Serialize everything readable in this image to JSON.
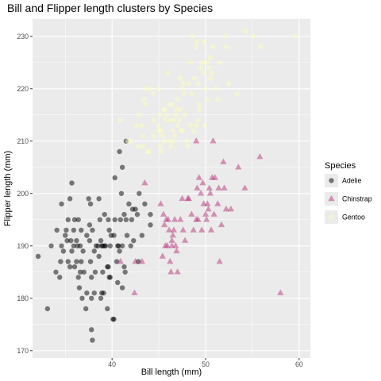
{
  "chart_data": {
    "type": "scatter",
    "title": "Bill and Flipper length clusters by Species",
    "xlabel": "Bill length (mm)",
    "ylabel": "Flipper length (mm)",
    "xlim": [
      31.5,
      61.2
    ],
    "ylim": [
      168.6,
      233.3
    ],
    "x_ticks": [
      40,
      50,
      60
    ],
    "y_ticks": [
      170,
      180,
      190,
      200,
      210,
      220,
      230
    ],
    "grid": true,
    "legend": {
      "title": "Species",
      "position": "right"
    },
    "colors": {
      "panel": "#ebebeb",
      "grid": "#ffffff"
    },
    "series": [
      {
        "name": "Adelie",
        "color": "#000004",
        "shape": "circle",
        "points": [
          [
            32.1,
            188
          ],
          [
            33.1,
            178
          ],
          [
            33.5,
            190
          ],
          [
            34.0,
            185
          ],
          [
            34.1,
            193
          ],
          [
            34.4,
            184
          ],
          [
            34.5,
            187
          ],
          [
            34.6,
            190
          ],
          [
            34.6,
            198
          ],
          [
            34.8,
            189
          ],
          [
            35.0,
            192
          ],
          [
            35.1,
            193
          ],
          [
            35.2,
            191
          ],
          [
            35.3,
            187
          ],
          [
            35.3,
            195
          ],
          [
            35.5,
            186
          ],
          [
            35.5,
            199
          ],
          [
            35.6,
            191
          ],
          [
            35.7,
            189
          ],
          [
            35.7,
            202
          ],
          [
            35.9,
            190
          ],
          [
            35.9,
            193
          ],
          [
            36.0,
            186
          ],
          [
            36.0,
            195
          ],
          [
            36.2,
            187
          ],
          [
            36.2,
            191
          ],
          [
            36.3,
            190
          ],
          [
            36.4,
            184
          ],
          [
            36.4,
            195
          ],
          [
            36.5,
            182
          ],
          [
            36.6,
            185
          ],
          [
            36.6,
            190
          ],
          [
            36.7,
            187
          ],
          [
            36.7,
            193
          ],
          [
            36.8,
            180
          ],
          [
            36.9,
            189
          ],
          [
            37.0,
            185
          ],
          [
            37.2,
            178
          ],
          [
            37.3,
            181
          ],
          [
            37.3,
            192
          ],
          [
            37.5,
            199
          ],
          [
            37.6,
            191
          ],
          [
            37.6,
            194
          ],
          [
            37.7,
            187
          ],
          [
            37.7,
            198
          ],
          [
            37.8,
            174
          ],
          [
            37.8,
            180
          ],
          [
            37.8,
            184
          ],
          [
            37.9,
            172
          ],
          [
            37.9,
            193
          ],
          [
            38.1,
            181
          ],
          [
            38.1,
            189
          ],
          [
            38.2,
            185
          ],
          [
            38.3,
            190
          ],
          [
            38.5,
            190
          ],
          [
            38.6,
            188
          ],
          [
            38.6,
            199
          ],
          [
            38.7,
            195
          ],
          [
            38.8,
            180
          ],
          [
            38.8,
            191
          ],
          [
            38.9,
            181
          ],
          [
            38.9,
            190
          ],
          [
            39.0,
            185
          ],
          [
            39.0,
            190
          ],
          [
            39.1,
            181
          ],
          [
            39.2,
            190
          ],
          [
            39.2,
            196
          ],
          [
            39.3,
            190
          ],
          [
            39.5,
            178
          ],
          [
            39.5,
            186
          ],
          [
            39.6,
            186
          ],
          [
            39.6,
            195
          ],
          [
            39.7,
            184
          ],
          [
            39.7,
            193
          ],
          [
            39.8,
            184
          ],
          [
            39.8,
            190
          ],
          [
            40.1,
            176
          ],
          [
            40.2,
            176
          ],
          [
            40.2,
            192
          ],
          [
            40.3,
            195
          ],
          [
            40.5,
            187
          ],
          [
            40.6,
            183
          ],
          [
            40.6,
            190
          ],
          [
            40.7,
            190
          ],
          [
            40.8,
            189
          ],
          [
            40.9,
            195
          ],
          [
            41.1,
            182
          ],
          [
            41.1,
            190
          ],
          [
            41.3,
            186
          ],
          [
            41.3,
            196
          ],
          [
            41.4,
            185
          ],
          [
            41.5,
            195
          ],
          [
            41.6,
            192
          ],
          [
            41.8,
            198
          ],
          [
            42.0,
            190
          ],
          [
            42.1,
            195
          ],
          [
            42.2,
            197
          ],
          [
            42.3,
            191
          ],
          [
            42.5,
            197
          ],
          [
            42.7,
            196
          ],
          [
            42.8,
            187
          ],
          [
            42.9,
            200
          ],
          [
            43.2,
            192
          ],
          [
            43.5,
            198
          ],
          [
            44.1,
            196
          ],
          [
            44.1,
            194
          ],
          [
            41.1,
            205
          ],
          [
            41.5,
            210
          ],
          [
            40.8,
            208
          ],
          [
            40.3,
            203
          ],
          [
            41.0,
            200
          ],
          [
            39.9,
            192
          ]
        ]
      },
      {
        "name": "Chinstrap",
        "color": "#b63679",
        "shape": "triangle",
        "points": [
          [
            40.9,
            187
          ],
          [
            42.4,
            181
          ],
          [
            42.5,
            187
          ],
          [
            43.2,
            187
          ],
          [
            45.2,
            198
          ],
          [
            45.4,
            188
          ],
          [
            45.5,
            196
          ],
          [
            45.6,
            194
          ],
          [
            45.7,
            190
          ],
          [
            45.9,
            190
          ],
          [
            46.0,
            195
          ],
          [
            46.1,
            193
          ],
          [
            46.2,
            187
          ],
          [
            46.4,
            190
          ],
          [
            46.4,
            191
          ],
          [
            46.5,
            192
          ],
          [
            46.6,
            193
          ],
          [
            46.7,
            195
          ],
          [
            46.8,
            190
          ],
          [
            46.9,
            189
          ],
          [
            47.0,
            185
          ],
          [
            47.3,
            195
          ],
          [
            47.5,
            199
          ],
          [
            47.6,
            193
          ],
          [
            47.8,
            191
          ],
          [
            48.1,
            199
          ],
          [
            48.2,
            199
          ],
          [
            48.7,
            193
          ],
          [
            49.0,
            195
          ],
          [
            49.0,
            210
          ],
          [
            49.2,
            195
          ],
          [
            49.3,
            203
          ],
          [
            49.5,
            200
          ],
          [
            49.6,
            193
          ],
          [
            49.7,
            202
          ],
          [
            49.8,
            198
          ],
          [
            50.0,
            196
          ],
          [
            50.1,
            195
          ],
          [
            50.2,
            198
          ],
          [
            50.3,
            197
          ],
          [
            50.4,
            201
          ],
          [
            50.5,
            200
          ],
          [
            50.6,
            193
          ],
          [
            50.7,
            203
          ],
          [
            50.8,
            210
          ],
          [
            50.9,
            196
          ],
          [
            51.0,
            203
          ],
          [
            51.3,
            198
          ],
          [
            51.4,
            201
          ],
          [
            51.5,
            187
          ],
          [
            51.7,
            194
          ],
          [
            51.9,
            206
          ],
          [
            52.0,
            201
          ],
          [
            52.2,
            197
          ],
          [
            52.7,
            197
          ],
          [
            53.5,
            205
          ],
          [
            54.2,
            201
          ],
          [
            55.8,
            207
          ],
          [
            58.0,
            181
          ],
          [
            46.3,
            185
          ],
          [
            43.5,
            202
          ],
          [
            45.8,
            195
          ],
          [
            48.5,
            196
          ],
          [
            49.1,
            201
          ]
        ]
      },
      {
        "name": "Gentoo",
        "color": "#fcfdbf",
        "shape": "circle",
        "points": [
          [
            40.9,
            214
          ],
          [
            41.7,
            210
          ],
          [
            42.0,
            210
          ],
          [
            42.6,
            213
          ],
          [
            42.8,
            209
          ],
          [
            42.9,
            215
          ],
          [
            43.2,
            213
          ],
          [
            43.3,
            209
          ],
          [
            43.4,
            218
          ],
          [
            43.5,
            220
          ],
          [
            43.6,
            217
          ],
          [
            43.8,
            208
          ],
          [
            44.0,
            208
          ],
          [
            44.4,
            219
          ],
          [
            44.5,
            214
          ],
          [
            44.9,
            213
          ],
          [
            45.0,
            220
          ],
          [
            45.1,
            215
          ],
          [
            45.2,
            212
          ],
          [
            45.3,
            208
          ],
          [
            45.4,
            211
          ],
          [
            45.5,
            216
          ],
          [
            45.6,
            210
          ],
          [
            45.7,
            214
          ],
          [
            45.8,
            215
          ],
          [
            46.1,
            217
          ],
          [
            46.2,
            214
          ],
          [
            46.3,
            209
          ],
          [
            46.4,
            217
          ],
          [
            46.5,
            210
          ],
          [
            46.6,
            214
          ],
          [
            46.7,
            211
          ],
          [
            46.8,
            215
          ],
          [
            46.9,
            216
          ],
          [
            47.0,
            213
          ],
          [
            47.2,
            214
          ],
          [
            47.3,
            216
          ],
          [
            47.4,
            212
          ],
          [
            47.5,
            220
          ],
          [
            47.6,
            221
          ],
          [
            47.7,
            219
          ],
          [
            47.8,
            215
          ],
          [
            48.1,
            209
          ],
          [
            48.2,
            221
          ],
          [
            48.4,
            213
          ],
          [
            48.5,
            219
          ],
          [
            48.6,
            230
          ],
          [
            48.7,
            212
          ],
          [
            48.8,
            222
          ],
          [
            49.0,
            228
          ],
          [
            49.1,
            229
          ],
          [
            49.2,
            221
          ],
          [
            49.3,
            217
          ],
          [
            49.4,
            216
          ],
          [
            49.5,
            224
          ],
          [
            49.6,
            225
          ],
          [
            49.8,
            229
          ],
          [
            49.9,
            213
          ],
          [
            50.0,
            220
          ],
          [
            50.1,
            225
          ],
          [
            50.2,
            218
          ],
          [
            50.4,
            224
          ],
          [
            50.5,
            222
          ],
          [
            50.7,
            223
          ],
          [
            50.8,
            228
          ],
          [
            51.1,
            220
          ],
          [
            51.3,
            218
          ],
          [
            51.5,
            225
          ],
          [
            52.1,
            230
          ],
          [
            52.2,
            228
          ],
          [
            52.5,
            221
          ],
          [
            53.4,
            219
          ],
          [
            54.3,
            231
          ],
          [
            55.1,
            230
          ],
          [
            55.9,
            228
          ],
          [
            59.6,
            230
          ],
          [
            44.0,
            220
          ],
          [
            45.0,
            212
          ],
          [
            46.0,
            223
          ],
          [
            47.0,
            218
          ],
          [
            48.0,
            210
          ],
          [
            49.0,
            213
          ],
          [
            46.5,
            212
          ],
          [
            45.7,
            216
          ],
          [
            44.5,
            211
          ],
          [
            47.3,
            222
          ],
          [
            49.2,
            214
          ],
          [
            50.5,
            226
          ],
          [
            48.4,
            225
          ],
          [
            46.2,
            210
          ],
          [
            45.1,
            209
          ],
          [
            43.3,
            211
          ],
          [
            47.5,
            212
          ],
          [
            49.8,
            223
          ]
        ]
      }
    ]
  }
}
